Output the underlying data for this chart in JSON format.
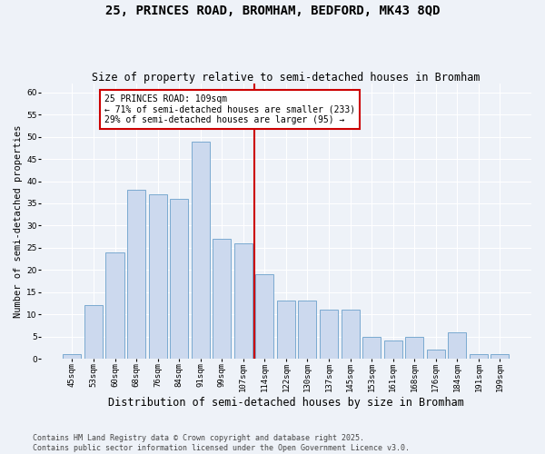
{
  "title": "25, PRINCES ROAD, BROMHAM, BEDFORD, MK43 8QD",
  "subtitle": "Size of property relative to semi-detached houses in Bromham",
  "xlabel": "Distribution of semi-detached houses by size in Bromham",
  "ylabel": "Number of semi-detached properties",
  "bar_labels": [
    "45sqm",
    "53sqm",
    "60sqm",
    "68sqm",
    "76sqm",
    "84sqm",
    "91sqm",
    "99sqm",
    "107sqm",
    "114sqm",
    "122sqm",
    "130sqm",
    "137sqm",
    "145sqm",
    "153sqm",
    "161sqm",
    "168sqm",
    "176sqm",
    "184sqm",
    "191sqm",
    "199sqm"
  ],
  "bar_values": [
    1,
    12,
    24,
    38,
    37,
    36,
    49,
    27,
    26,
    19,
    13,
    13,
    11,
    11,
    5,
    4,
    5,
    2,
    6,
    1,
    1
  ],
  "bar_color": "#ccd9ee",
  "bar_edge_color": "#7aaad0",
  "ylim": [
    0,
    62
  ],
  "yticks": [
    0,
    5,
    10,
    15,
    20,
    25,
    30,
    35,
    40,
    45,
    50,
    55,
    60
  ],
  "vline_x_idx": 8.5,
  "vline_color": "#cc0000",
  "annotation_text": "25 PRINCES ROAD: 109sqm\n← 71% of semi-detached houses are smaller (233)\n29% of semi-detached houses are larger (95) →",
  "annotation_box_color": "#cc0000",
  "footer_text": "Contains HM Land Registry data © Crown copyright and database right 2025.\nContains public sector information licensed under the Open Government Licence v3.0.",
  "background_color": "#eef2f8",
  "grid_color": "#ffffff",
  "title_fontsize": 10,
  "subtitle_fontsize": 8.5,
  "xlabel_fontsize": 8.5,
  "ylabel_fontsize": 7.5,
  "tick_fontsize": 6.5,
  "footer_fontsize": 6,
  "annotation_fontsize": 7
}
